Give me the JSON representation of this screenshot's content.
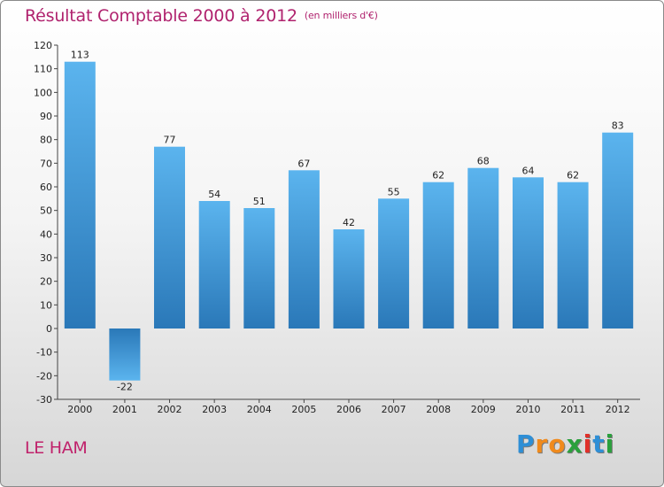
{
  "header": {
    "title": "Résultat Comptable 2000 à 2012",
    "unit": "(en milliers d'€)"
  },
  "footer": {
    "location": "LE HAM",
    "brand": [
      "P",
      "r",
      "o",
      "x",
      "i",
      "t",
      "i"
    ]
  },
  "colors": {
    "title": "#b0226e",
    "bar_top": "#5bb4ee",
    "bar_bottom": "#2a78b8",
    "brand": [
      "#2e8fd6",
      "#f08a1c",
      "#f08a1c",
      "#2aa03c",
      "#e0302a",
      "#2e8fd6",
      "#2aa03c"
    ]
  },
  "chart_data": {
    "type": "bar",
    "title": "Résultat Comptable 2000 à 2012",
    "ylabel": "en milliers d'€",
    "xlabel": "",
    "categories": [
      "2000",
      "2001",
      "2002",
      "2003",
      "2004",
      "2005",
      "2006",
      "2007",
      "2008",
      "2009",
      "2010",
      "2011",
      "2012"
    ],
    "values": [
      113,
      -22,
      77,
      54,
      51,
      67,
      42,
      55,
      62,
      68,
      64,
      62,
      83
    ],
    "ylim": [
      -30,
      120
    ],
    "yticks": [
      -30,
      -20,
      -10,
      0,
      10,
      20,
      30,
      40,
      50,
      60,
      70,
      80,
      90,
      100,
      110,
      120
    ],
    "grid": false
  }
}
